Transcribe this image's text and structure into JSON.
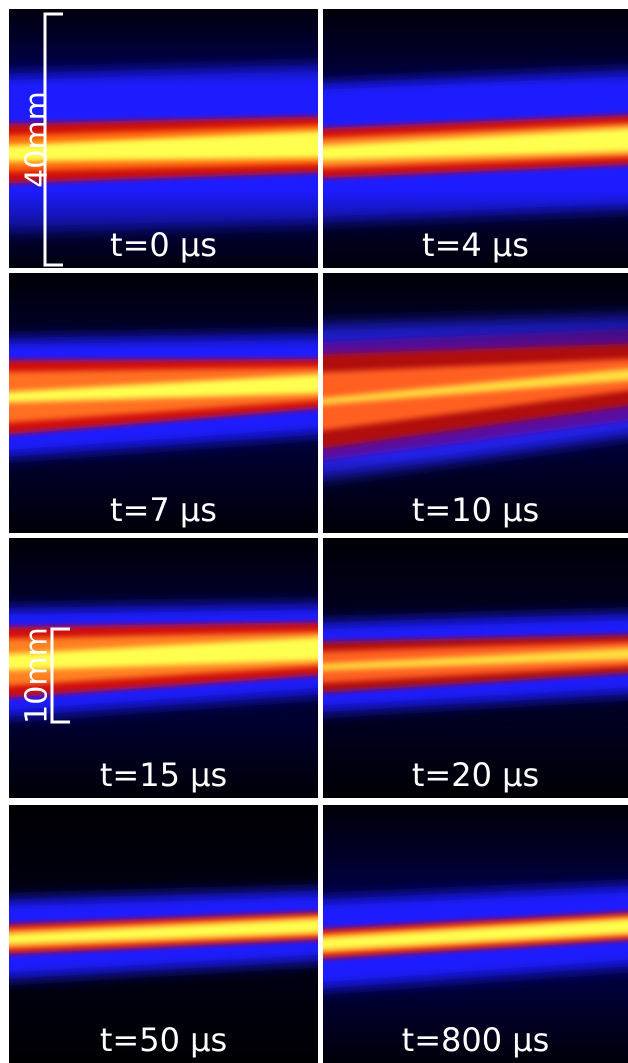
{
  "panels": [
    {
      "label": "t=0 μs"
    },
    {
      "label": "t=4 μs"
    },
    {
      "label": "t=7 μs"
    },
    {
      "label": "t=10 μs"
    },
    {
      "label": "t=15 μs"
    },
    {
      "label": "t=20 μs"
    },
    {
      "label": "t=50 μs"
    },
    {
      "label": "t=800 μs"
    }
  ],
  "scale_bars": [
    {
      "label": "40mm"
    },
    {
      "label": "10mm"
    }
  ]
}
